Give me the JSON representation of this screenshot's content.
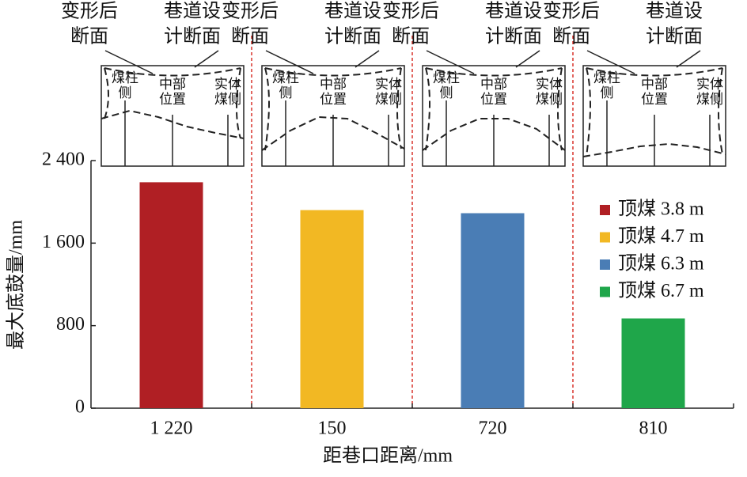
{
  "chart_data": {
    "type": "bar",
    "ylabel": "最大底鼓量/mm",
    "xlabel": "距巷口距离/mm",
    "categories": [
      "1 220",
      "150",
      "720",
      "810"
    ],
    "series": [
      {
        "name": "顶煤 3.8 m",
        "color": "#b01f24",
        "values": [
          2190,
          null,
          null,
          null
        ]
      },
      {
        "name": "顶煤 4.7 m",
        "color": "#f2b823",
        "values": [
          null,
          1920,
          null,
          null
        ]
      },
      {
        "name": "顶煤 6.3 m",
        "color": "#4a7db5",
        "values": [
          null,
          null,
          1890,
          null
        ]
      },
      {
        "name": "顶煤 6.7 m",
        "color": "#1fa64a",
        "values": [
          null,
          null,
          null,
          870
        ]
      }
    ],
    "ylim": [
      0,
      2400
    ],
    "yticks": [
      0,
      800,
      {
        "value": 1600,
        "label": "1 600"
      },
      {
        "value": 2400,
        "label": "2 400"
      }
    ],
    "legend": "right",
    "section_labels": {
      "deformed": [
        "变形后",
        "断面"
      ],
      "design": [
        "巷道设",
        "计断面"
      ],
      "positions": [
        [
          "煤柱",
          "侧"
        ],
        [
          "中部",
          "位置"
        ],
        [
          "实体",
          "煤侧"
        ]
      ]
    }
  }
}
